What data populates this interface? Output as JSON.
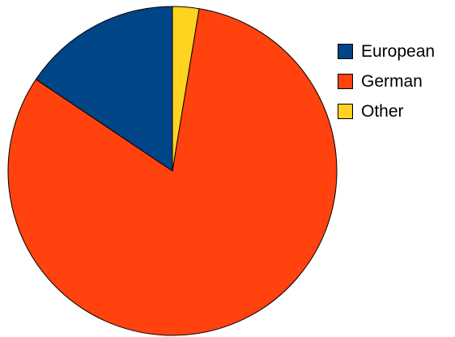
{
  "chart_data": {
    "type": "pie",
    "title": "",
    "start_angle_deg": 0,
    "direction": "clockwise",
    "slices": [
      {
        "label": "Other",
        "value": 2.6,
        "color": "#FFD320"
      },
      {
        "label": "German",
        "value": 81.8,
        "color": "#FF420E"
      },
      {
        "label": "European",
        "value": 15.6,
        "color": "#004586"
      }
    ],
    "legend": {
      "position": "right",
      "items": [
        {
          "label": "European",
          "color": "#004586"
        },
        {
          "label": "German",
          "color": "#FF420E"
        },
        {
          "label": "Other",
          "color": "#FFD320"
        }
      ]
    },
    "outline_color": "#000000"
  }
}
